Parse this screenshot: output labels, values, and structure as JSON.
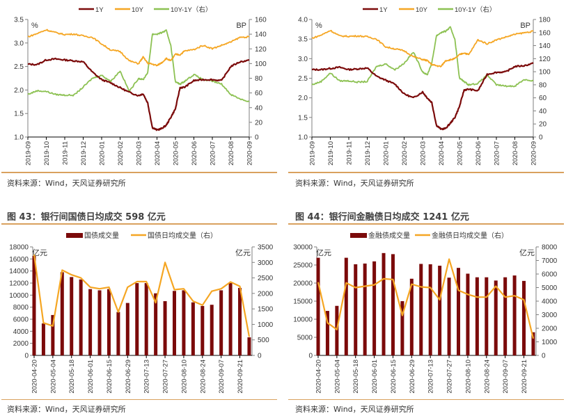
{
  "colors": {
    "y1": "#7b0a0a",
    "y10": "#f5a623",
    "spread": "#8cc152",
    "bar": "#7b0a0a",
    "line": "#f5a623",
    "rule": "#d9a15e"
  },
  "sources": {
    "text": "资料来源：Wind，天风证券研究所"
  },
  "chart_data": [
    {
      "id": "gov-yield",
      "type": "line",
      "title": "",
      "legend": [
        "1Y",
        "10Y",
        "10Y-1Y（右）"
      ],
      "legend_position": "top",
      "left_unit": "%",
      "right_unit": "BP",
      "ylim": [
        1.0,
        3.5
      ],
      "yticks": [
        "1.0",
        "1.5",
        "2.0",
        "2.5",
        "3.0",
        "3.5"
      ],
      "y2lim": [
        0,
        160
      ],
      "y2ticks": [
        "0",
        "20",
        "40",
        "60",
        "80",
        "100",
        "120",
        "140",
        "160"
      ],
      "xticks": [
        "2019-09",
        "2019-10",
        "2019-11",
        "2019-12",
        "2020-01",
        "2020-02",
        "2020-03",
        "2020-04",
        "2020-05",
        "2020-06",
        "2020-07",
        "2020-08",
        "2020-09"
      ],
      "x": [
        0,
        0.5,
        1,
        1.5,
        2,
        2.5,
        3,
        3.5,
        4,
        4.5,
        5,
        5.5,
        6,
        6.25,
        6.5,
        6.75,
        7,
        7.25,
        7.5,
        7.75,
        8,
        8.25,
        8.5,
        9,
        9.5,
        10,
        10.5,
        11,
        11.5,
        12
      ],
      "series": [
        {
          "name": "1Y",
          "axis": "left",
          "values": [
            2.55,
            2.54,
            2.64,
            2.66,
            2.64,
            2.62,
            2.6,
            2.38,
            2.22,
            2.15,
            2.05,
            1.95,
            1.88,
            1.92,
            1.72,
            1.2,
            1.15,
            1.18,
            1.25,
            1.42,
            1.6,
            2.05,
            2.06,
            2.2,
            2.22,
            2.22,
            2.2,
            2.5,
            2.6,
            2.63
          ]
        },
        {
          "name": "10Y",
          "axis": "left",
          "values": [
            3.13,
            3.2,
            3.28,
            3.22,
            3.18,
            3.19,
            3.15,
            3.12,
            2.98,
            2.85,
            2.82,
            2.62,
            2.56,
            2.7,
            2.57,
            2.55,
            2.52,
            2.58,
            2.67,
            2.62,
            2.76,
            2.75,
            2.83,
            2.86,
            2.95,
            2.88,
            2.95,
            3.02,
            3.12,
            3.13
          ]
        },
        {
          "name": "10Y-1Y（右）",
          "axis": "right",
          "values": [
            58,
            63,
            62,
            58,
            57,
            57,
            68,
            80,
            84,
            76,
            90,
            62,
            80,
            78,
            88,
            140,
            140,
            142,
            145,
            125,
            75,
            72,
            76,
            85,
            78,
            76,
            72,
            58,
            52,
            48
          ]
        }
      ]
    },
    {
      "id": "fin-yield",
      "type": "line",
      "title": "",
      "legend": [
        "1Y",
        "10Y",
        "10Y-1Y（右）"
      ],
      "legend_position": "top",
      "left_unit": "%",
      "right_unit": "BP",
      "ylim": [
        1.0,
        4.0
      ],
      "yticks": [
        "1.0",
        "1.5",
        "2.0",
        "2.5",
        "3.0",
        "3.5",
        "4.0"
      ],
      "y2lim": [
        0,
        180
      ],
      "y2ticks": [
        "0",
        "20",
        "40",
        "60",
        "80",
        "100",
        "120",
        "140",
        "160",
        "180"
      ],
      "xticks": [
        "2019-09",
        "2019-10",
        "2019-11",
        "2019-12",
        "2020-01",
        "2020-02",
        "2020-03",
        "2020-04",
        "2020-05",
        "2020-06",
        "2020-07",
        "2020-08",
        "2020-09"
      ],
      "x": [
        0,
        0.5,
        1,
        1.5,
        2,
        2.5,
        3,
        3.5,
        4,
        4.5,
        5,
        5.5,
        6,
        6.25,
        6.5,
        6.75,
        7,
        7.25,
        7.5,
        7.75,
        8,
        8.25,
        8.5,
        9,
        9.5,
        10,
        10.5,
        11,
        11.5,
        12
      ],
      "series": [
        {
          "name": "1Y",
          "axis": "left",
          "values": [
            2.72,
            2.72,
            2.75,
            2.78,
            2.72,
            2.74,
            2.76,
            2.55,
            2.45,
            2.35,
            2.1,
            2.0,
            2.15,
            2.0,
            1.88,
            1.3,
            1.2,
            1.22,
            1.35,
            1.5,
            1.78,
            2.2,
            2.22,
            2.18,
            2.6,
            2.65,
            2.66,
            2.8,
            2.82,
            2.88
          ]
        },
        {
          "name": "10Y",
          "axis": "left",
          "values": [
            3.52,
            3.6,
            3.72,
            3.58,
            3.57,
            3.58,
            3.56,
            3.5,
            3.3,
            3.25,
            3.2,
            3.05,
            2.98,
            2.95,
            2.85,
            2.82,
            2.8,
            2.95,
            2.97,
            3.0,
            3.1,
            3.15,
            3.1,
            3.48,
            3.38,
            3.48,
            3.55,
            3.62,
            3.66,
            3.7
          ]
        },
        {
          "name": "10Y-1Y（右）",
          "axis": "right",
          "values": [
            80,
            85,
            98,
            86,
            86,
            84,
            85,
            108,
            112,
            103,
            113,
            130,
            100,
            95,
            113,
            155,
            160,
            162,
            168,
            150,
            90,
            85,
            80,
            82,
            95,
            80,
            78,
            78,
            88,
            86
          ]
        }
      ]
    },
    {
      "id": "gov-volume",
      "type": "bar",
      "title": "图 43：银行间国债日均成交 598 亿元",
      "legend": [
        "国债成交量",
        "国债日均成交量（右）"
      ],
      "legend_position": "top",
      "left_unit": "亿元",
      "right_unit": "亿元",
      "ylim": [
        0,
        18000
      ],
      "yticks": [
        "0",
        "2000",
        "4000",
        "6000",
        "8000",
        "10000",
        "12000",
        "14000",
        "16000",
        "18000"
      ],
      "y2lim": [
        0,
        3500
      ],
      "y2ticks": [
        "0",
        "500",
        "1000",
        "1500",
        "2000",
        "2500",
        "3000",
        "3500"
      ],
      "categories": [
        "2020-04-20",
        "2020-04-27",
        "2020-05-04",
        "2020-05-11",
        "2020-05-18",
        "2020-05-25",
        "2020-06-01",
        "2020-06-08",
        "2020-06-15",
        "2020-06-22",
        "2020-06-29",
        "2020-07-06",
        "2020-07-13",
        "2020-07-20",
        "2020-07-27",
        "2020-08-03",
        "2020-08-10",
        "2020-08-17",
        "2020-08-24",
        "2020-08-31",
        "2020-09-07",
        "2020-09-14",
        "2020-09-21",
        "2020-09-28"
      ],
      "xticks": [
        "2020-04-20",
        "2020-05-04",
        "2020-05-18",
        "2020-06-01",
        "2020-06-15",
        "2020-06-29",
        "2020-07-13",
        "2020-07-27",
        "2020-08-10",
        "2020-08-24",
        "2020-09-07",
        "2020-09-21"
      ],
      "series": [
        {
          "name": "国债成交量",
          "type": "bar",
          "axis": "left",
          "values": [
            16500,
            5300,
            6700,
            13800,
            13000,
            12600,
            11000,
            10800,
            11000,
            7200,
            8700,
            12000,
            12000,
            10300,
            9000,
            10700,
            10800,
            8800,
            8200,
            8400,
            10800,
            12000,
            11200,
            3000
          ]
        },
        {
          "name": "国债日均成交量（右）",
          "type": "line",
          "axis": "right",
          "values": [
            3250,
            1050,
            950,
            2750,
            2600,
            2500,
            2200,
            2150,
            2200,
            1400,
            2200,
            2380,
            2380,
            1700,
            3000,
            2120,
            2150,
            1750,
            1620,
            2070,
            2150,
            2370,
            2230,
            598
          ]
        }
      ]
    },
    {
      "id": "fin-volume",
      "type": "bar",
      "title": "图 44：银行间金融债日均成交 1241 亿元",
      "legend": [
        "金融债成交量",
        "金融债日均成交量（右）"
      ],
      "legend_position": "top",
      "left_unit": "亿元",
      "right_unit": "亿元",
      "ylim": [
        0,
        30000
      ],
      "yticks": [
        "0",
        "5000",
        "10000",
        "15000",
        "20000",
        "25000",
        "30000"
      ],
      "y2lim": [
        0,
        8000
      ],
      "y2ticks": [
        "0",
        "1000",
        "2000",
        "3000",
        "4000",
        "5000",
        "6000",
        "7000",
        "8000"
      ],
      "categories": [
        "2020-04-20",
        "2020-04-27",
        "2020-05-04",
        "2020-05-11",
        "2020-05-18",
        "2020-05-25",
        "2020-06-01",
        "2020-06-08",
        "2020-06-15",
        "2020-06-22",
        "2020-06-29",
        "2020-07-06",
        "2020-07-13",
        "2020-07-20",
        "2020-07-27",
        "2020-08-03",
        "2020-08-10",
        "2020-08-17",
        "2020-08-24",
        "2020-08-31",
        "2020-09-07",
        "2020-09-14",
        "2020-09-21",
        "2020-09-28"
      ],
      "xticks": [
        "2020-04-20",
        "2020-05-04",
        "2020-05-18",
        "2020-06-01",
        "2020-06-15",
        "2020-06-29",
        "2020-07-13",
        "2020-07-27",
        "2020-08-10",
        "2020-08-24",
        "2020-09-07",
        "2020-09-21"
      ],
      "series": [
        {
          "name": "金融债成交量",
          "type": "bar",
          "axis": "left",
          "values": [
            27000,
            12300,
            13700,
            27000,
            25200,
            25400,
            26000,
            28300,
            28000,
            15000,
            21200,
            25300,
            25200,
            24800,
            21500,
            24200,
            22600,
            21600,
            21600,
            20700,
            21600,
            22100,
            20600,
            6400
          ]
        },
        {
          "name": "金融债日均成交量（右）",
          "type": "line",
          "axis": "right",
          "values": [
            5400,
            2400,
            1900,
            5350,
            5000,
            5100,
            5200,
            5650,
            5600,
            2950,
            5250,
            5050,
            5000,
            4100,
            7100,
            4800,
            4500,
            4300,
            4300,
            5100,
            4300,
            4400,
            4100,
            1241
          ]
        }
      ]
    }
  ]
}
